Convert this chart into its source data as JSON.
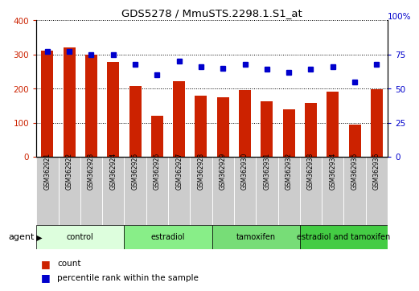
{
  "title": "GDS5278 / MmuSTS.2298.1.S1_at",
  "samples": [
    "GSM362921",
    "GSM362922",
    "GSM362923",
    "GSM362924",
    "GSM362925",
    "GSM362926",
    "GSM362927",
    "GSM362928",
    "GSM362929",
    "GSM362930",
    "GSM362931",
    "GSM362932",
    "GSM362933",
    "GSM362934",
    "GSM362935",
    "GSM362936"
  ],
  "counts": [
    310,
    320,
    300,
    278,
    208,
    120,
    222,
    180,
    175,
    196,
    163,
    138,
    158,
    190,
    95,
    198
  ],
  "percentiles_pct": [
    77,
    77,
    75,
    74.5,
    68,
    60,
    70,
    66,
    64.5,
    67.5,
    64,
    62,
    64,
    66,
    55,
    67.5
  ],
  "bar_color": "#cc2200",
  "dot_color": "#0000cc",
  "ylim_left": [
    0,
    400
  ],
  "ylim_right": [
    0,
    100
  ],
  "yticks_left": [
    0,
    100,
    200,
    300,
    400
  ],
  "yticks_right": [
    0,
    25,
    50,
    75
  ],
  "groups": [
    {
      "label": "control",
      "start": 0,
      "end": 4,
      "color": "#ddfedd"
    },
    {
      "label": "estradiol",
      "start": 4,
      "end": 8,
      "color": "#88ee88"
    },
    {
      "label": "tamoxifen",
      "start": 8,
      "end": 12,
      "color": "#77dd77"
    },
    {
      "label": "estradiol and tamoxifen",
      "start": 12,
      "end": 16,
      "color": "#44cc44"
    }
  ],
  "agent_label": "agent",
  "legend_count": "count",
  "legend_percentile": "percentile rank within the sample",
  "grid_color": "#000000",
  "background_color": "#ffffff"
}
